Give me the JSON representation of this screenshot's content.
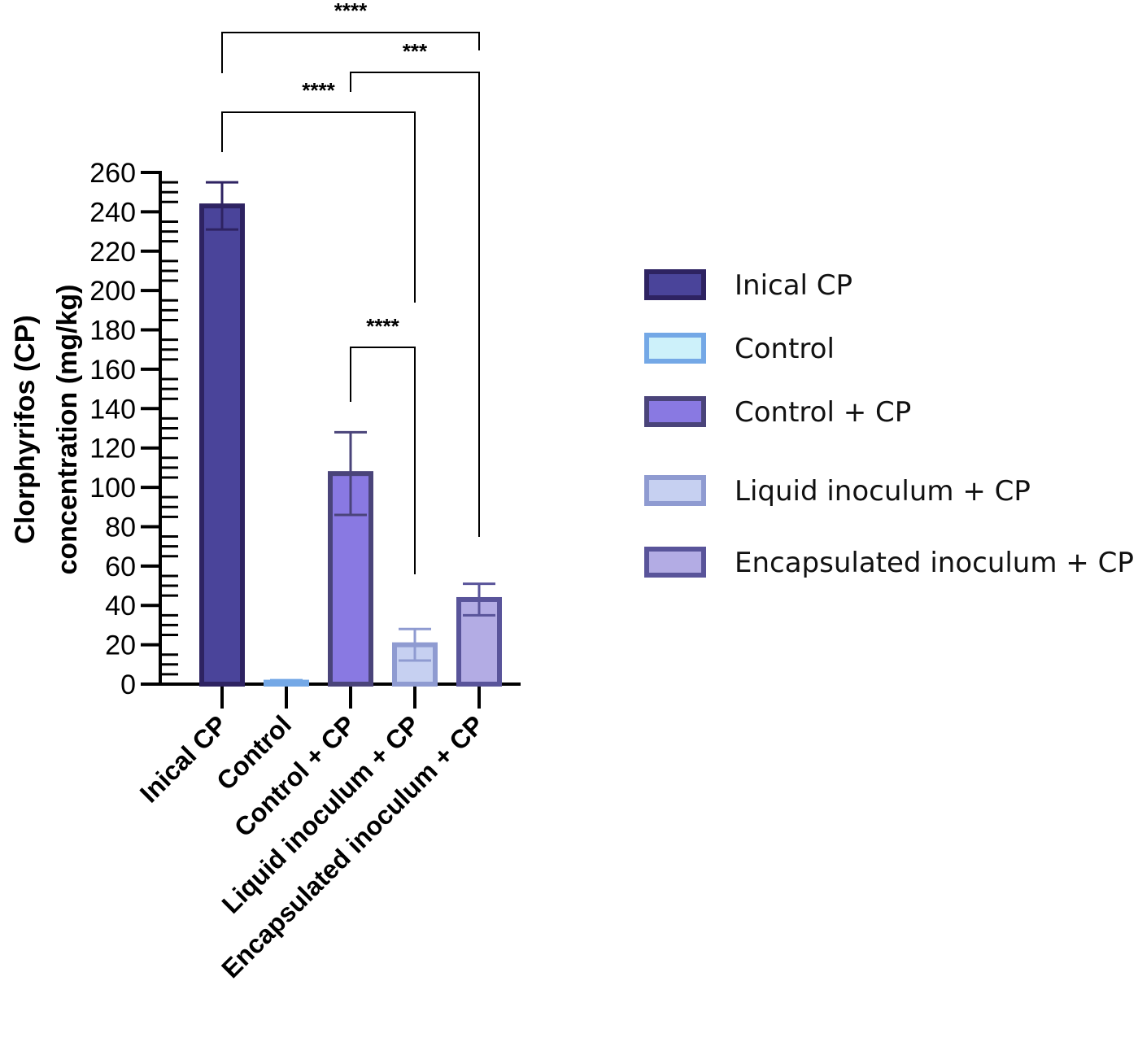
{
  "chart_data": {
    "type": "bar",
    "title": "",
    "xlabel": "",
    "ylabel_lines": [
      "Clorphyrifos (CP)",
      "concentration (mg/kg)"
    ],
    "ylim": [
      0,
      260
    ],
    "y_ticks": [
      0,
      20,
      40,
      60,
      80,
      100,
      120,
      140,
      160,
      180,
      200,
      220,
      240,
      260
    ],
    "categories": [
      "Inical CP",
      "Control",
      "Control + CP",
      "Liquid inoculum + CP",
      "Encapsulated inoculum + CP"
    ],
    "values": [
      243,
      1,
      107,
      20,
      43
    ],
    "errors": [
      12,
      1,
      21,
      8,
      8
    ],
    "colors": {
      "fills": [
        "#4a449a",
        "#cdf1fa",
        "#8979e2",
        "#c6d0f1",
        "#b3ace4"
      ],
      "edges": [
        "#2e2362",
        "#74a8e6",
        "#4a447a",
        "#8f9bd1",
        "#59549a"
      ]
    },
    "legend": {
      "placement": "right",
      "entries": [
        "Inical CP",
        "Control",
        "Control + CP",
        "Liquid inoculum + CP",
        "Encapsulated inoculum + CP"
      ]
    },
    "significance": [
      {
        "from": 0,
        "to": 4,
        "label": "****"
      },
      {
        "from": 2,
        "to": 4,
        "label": "***"
      },
      {
        "from": 0,
        "to": 3,
        "label": "****"
      },
      {
        "from": 2,
        "to": 3,
        "label": "****"
      }
    ]
  }
}
